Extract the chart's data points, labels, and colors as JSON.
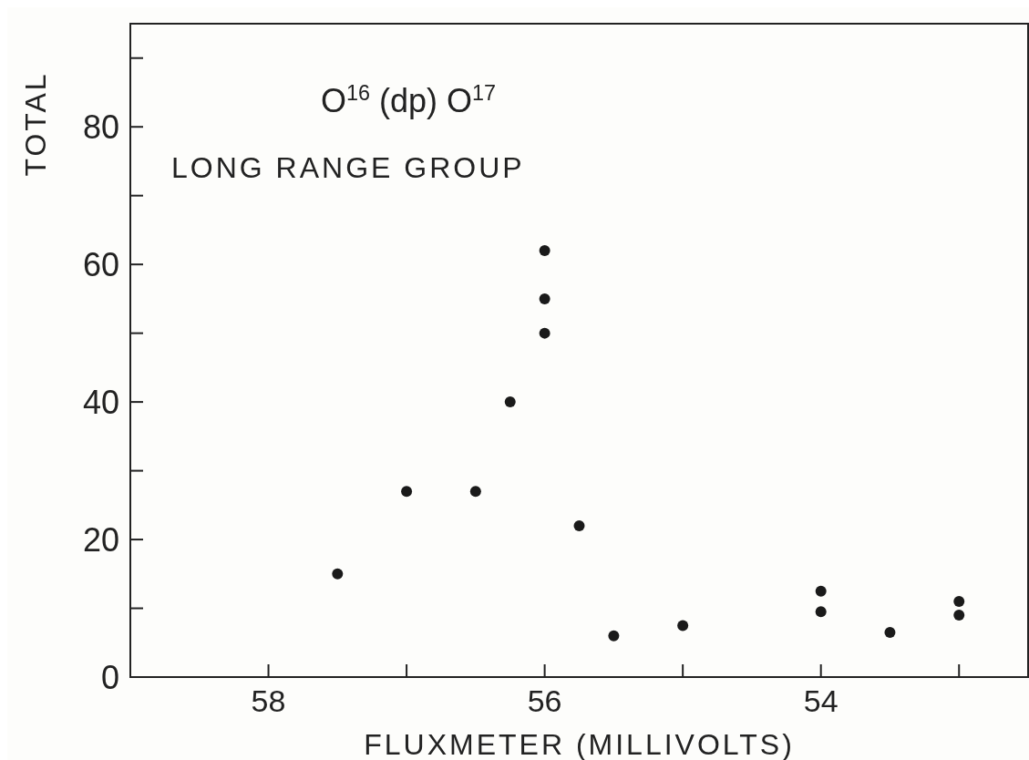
{
  "chart_data": {
    "type": "scatter",
    "title": "O$^{16}$ (dp) O$^{17}$",
    "subtitle": "LONG RANGE GROUP",
    "xlabel": "FLUXMETER (MILLIVOLTS)",
    "ylabel": "TOTAL",
    "x": [
      57.5,
      57.0,
      56.5,
      56.25,
      56.0,
      56.0,
      56.0,
      55.75,
      55.5,
      55.0,
      54.0,
      54.0,
      53.5,
      53.0,
      53.0
    ],
    "values": [
      15,
      27,
      27,
      40,
      62,
      55,
      50,
      22,
      6,
      7.5,
      12.5,
      9.5,
      6.5,
      11,
      9
    ],
    "color": "#1a1a1a",
    "marker": "circle",
    "grid": false,
    "xlim": [
      59,
      52.5
    ],
    "xticks": [
      {
        "value": 58,
        "label": "58"
      },
      {
        "value": 57,
        "label": null
      },
      {
        "value": 56,
        "label": "56"
      },
      {
        "value": 55,
        "label": null
      },
      {
        "value": 54,
        "label": "54"
      },
      {
        "value": 53,
        "label": null
      }
    ],
    "ylim": [
      0,
      95
    ],
    "yticks": [
      0,
      {
        "value": 10,
        "label": null
      },
      20,
      {
        "value": 30,
        "label": null
      },
      40,
      {
        "value": 50,
        "label": null
      },
      60,
      {
        "value": 70,
        "label": null
      },
      80,
      {
        "value": 90,
        "label": null
      }
    ]
  }
}
